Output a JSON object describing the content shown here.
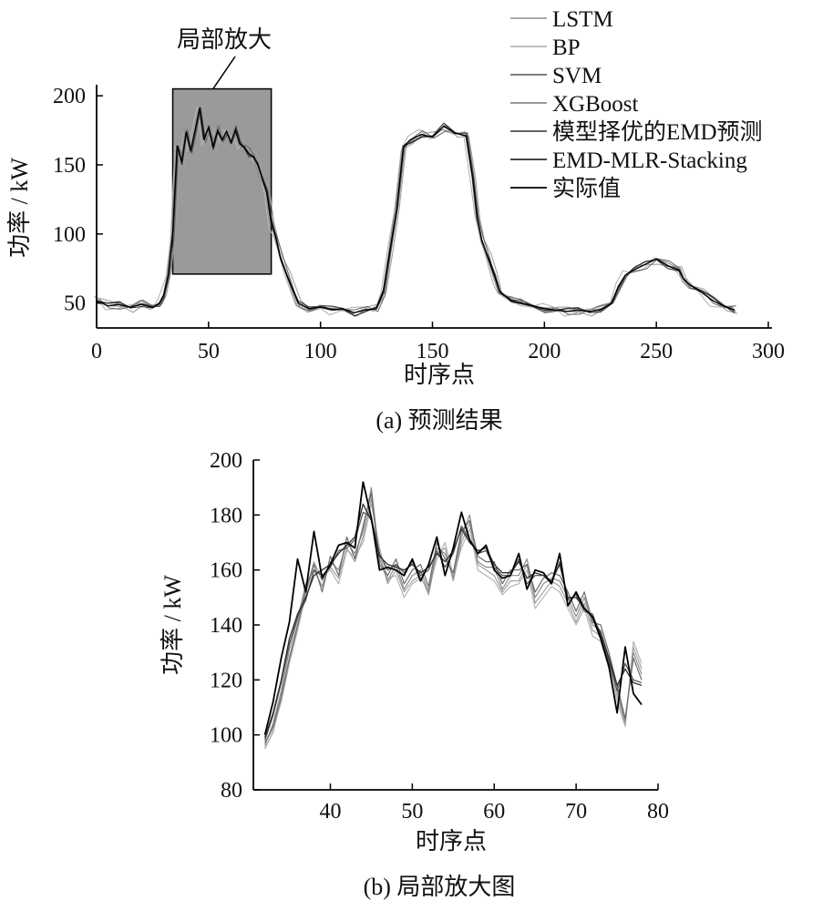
{
  "chart_data": [
    {
      "type": "line",
      "caption": "(a)  预测结果",
      "xlabel": "时序点",
      "ylabel": "功率 / kW",
      "xlim": [
        0,
        300
      ],
      "ylim": [
        32,
        208
      ],
      "xticks": [
        0,
        50,
        100,
        150,
        200,
        250,
        300
      ],
      "yticks": [
        50,
        100,
        150,
        200
      ],
      "annotation": {
        "text": "局部放大",
        "x_range": [
          34,
          78
        ],
        "y_range": [
          71,
          205
        ],
        "fill": "#9a9a9a"
      },
      "legend": {
        "placement": "top-right",
        "entries": [
          "LSTM",
          "BP",
          "SVM",
          "XGBoost",
          "模型择优的EMD预测",
          "EMD-MLR-Stacking",
          "实际值"
        ]
      },
      "series": [
        {
          "name": "LSTM",
          "color": "#a0a0a0"
        },
        {
          "name": "BP",
          "color": "#b4b4b4"
        },
        {
          "name": "SVM",
          "color": "#6a6a6a"
        },
        {
          "name": "XGBoost",
          "color": "#8c8c8c"
        },
        {
          "name": "模型择优的EMD预测",
          "color": "#505050"
        },
        {
          "name": "EMD-MLR-Stacking",
          "color": "#2e2e2e"
        },
        {
          "name": "实际值",
          "color": "#000000"
        }
      ],
      "x": [
        0,
        5,
        10,
        15,
        20,
        25,
        28,
        30,
        32,
        34,
        36,
        38,
        40,
        42,
        44,
        46,
        48,
        50,
        52,
        54,
        56,
        58,
        60,
        62,
        64,
        66,
        68,
        70,
        72,
        74,
        76,
        78,
        80,
        82,
        85,
        90,
        95,
        100,
        105,
        110,
        115,
        120,
        125,
        128,
        131,
        134,
        137,
        140,
        145,
        150,
        155,
        160,
        165,
        168,
        170,
        172,
        175,
        178,
        180,
        185,
        190,
        195,
        200,
        205,
        210,
        215,
        220,
        225,
        230,
        233,
        236,
        240,
        245,
        250,
        255,
        260,
        262,
        265,
        270,
        275,
        280,
        285
      ],
      "actual": [
        52,
        48,
        49,
        47,
        49,
        47,
        50,
        56,
        70,
        100,
        164,
        152,
        174,
        160,
        175,
        191,
        168,
        177,
        163,
        175,
        168,
        174,
        166,
        175,
        165,
        163,
        158,
        156,
        150,
        140,
        130,
        108,
        98,
        84,
        70,
        50,
        46,
        47,
        45,
        46,
        43,
        45,
        46,
        58,
        88,
        118,
        163,
        168,
        172,
        170,
        178,
        173,
        171,
        140,
        112,
        96,
        82,
        68,
        58,
        52,
        50,
        48,
        46,
        45,
        44,
        45,
        44,
        45,
        50,
        62,
        70,
        74,
        78,
        82,
        77,
        74,
        68,
        63,
        58,
        52,
        48,
        45
      ]
    },
    {
      "type": "line",
      "caption": "(b)  局部放大图",
      "xlabel": "时序点",
      "ylabel": "功率 / kW",
      "xlim": [
        32,
        78
      ],
      "ylim": [
        80,
        200
      ],
      "xticks": [
        40,
        50,
        60,
        70,
        80
      ],
      "yticks": [
        80,
        100,
        120,
        140,
        160,
        180,
        200
      ],
      "x": [
        32,
        33,
        34,
        35,
        36,
        37,
        38,
        39,
        40,
        41,
        42,
        43,
        44,
        45,
        46,
        47,
        48,
        49,
        50,
        51,
        52,
        53,
        54,
        55,
        56,
        57,
        58,
        59,
        60,
        61,
        62,
        63,
        64,
        65,
        66,
        67,
        68,
        69,
        70,
        71,
        72,
        73,
        74,
        75,
        76,
        77,
        78
      ],
      "series": [
        {
          "name": "实际值",
          "color": "#000000",
          "width": 1.8,
          "values": [
            100,
            112,
            128,
            141,
            164,
            152,
            174,
            157,
            162,
            169,
            170,
            168,
            192,
            179,
            160,
            161,
            160,
            158,
            164,
            156,
            162,
            172,
            158,
            168,
            181,
            171,
            166,
            169,
            160,
            157,
            158,
            166,
            153,
            160,
            159,
            155,
            166,
            147,
            152,
            146,
            143,
            135,
            125,
            108,
            132,
            115,
            111
          ]
        },
        {
          "name": "EMD-MLR-Stacking",
          "color": "#2e2e2e",
          "width": 1.3,
          "values": [
            99,
            108,
            120,
            135,
            144,
            150,
            158,
            160,
            162,
            166,
            169,
            172,
            184,
            178,
            165,
            162,
            161,
            160,
            162,
            159,
            161,
            166,
            163,
            167,
            175,
            170,
            167,
            168,
            162,
            159,
            159,
            163,
            157,
            159,
            158,
            156,
            162,
            150,
            150,
            146,
            143,
            137,
            128,
            118,
            124,
            119,
            118
          ]
        },
        {
          "name": "模型择优的EMD预测",
          "color": "#505050",
          "width": 1.2,
          "values": [
            98,
            107,
            119,
            133,
            143,
            149,
            160,
            158,
            161,
            167,
            168,
            171,
            181,
            179,
            166,
            160,
            162,
            159,
            163,
            158,
            160,
            167,
            161,
            166,
            176,
            171,
            166,
            167,
            161,
            158,
            158,
            164,
            155,
            158,
            158,
            155,
            163,
            149,
            151,
            145,
            144,
            136,
            127,
            116,
            126,
            120,
            119
          ]
        },
        {
          "name": "SVM",
          "color": "#6a6a6a",
          "width": 1.2,
          "values": [
            97,
            103,
            114,
            128,
            140,
            153,
            162,
            152,
            165,
            158,
            172,
            164,
            176,
            188,
            162,
            158,
            164,
            155,
            160,
            162,
            154,
            170,
            164,
            159,
            174,
            178,
            165,
            163,
            163,
            155,
            160,
            160,
            162,
            152,
            157,
            159,
            158,
            152,
            145,
            152,
            141,
            140,
            130,
            118,
            106,
            128,
            120
          ]
        },
        {
          "name": "XGBoost",
          "color": "#8c8c8c",
          "width": 1.2,
          "values": [
            96,
            104,
            116,
            131,
            142,
            155,
            160,
            154,
            163,
            160,
            170,
            166,
            174,
            190,
            164,
            156,
            162,
            153,
            158,
            160,
            152,
            168,
            166,
            157,
            172,
            180,
            163,
            161,
            161,
            153,
            158,
            158,
            164,
            150,
            155,
            157,
            156,
            150,
            143,
            150,
            140,
            138,
            128,
            116,
            105,
            130,
            122
          ]
        },
        {
          "name": "LSTM",
          "color": "#a0a0a0",
          "width": 1.2,
          "values": [
            95,
            101,
            113,
            127,
            139,
            152,
            163,
            156,
            161,
            157,
            168,
            163,
            172,
            186,
            166,
            155,
            160,
            152,
            156,
            158,
            151,
            166,
            168,
            156,
            170,
            177,
            162,
            160,
            158,
            152,
            156,
            156,
            162,
            148,
            152,
            156,
            154,
            148,
            141,
            148,
            138,
            136,
            126,
            114,
            104,
            132,
            124
          ]
        },
        {
          "name": "BP",
          "color": "#b4b4b4",
          "width": 1.2,
          "values": [
            97,
            102,
            112,
            126,
            138,
            151,
            162,
            158,
            160,
            155,
            167,
            165,
            170,
            184,
            168,
            157,
            158,
            150,
            155,
            157,
            153,
            164,
            170,
            158,
            168,
            175,
            160,
            158,
            156,
            151,
            154,
            155,
            160,
            146,
            150,
            154,
            152,
            146,
            140,
            146,
            136,
            134,
            124,
            112,
            103,
            134,
            126
          ]
        }
      ]
    }
  ]
}
